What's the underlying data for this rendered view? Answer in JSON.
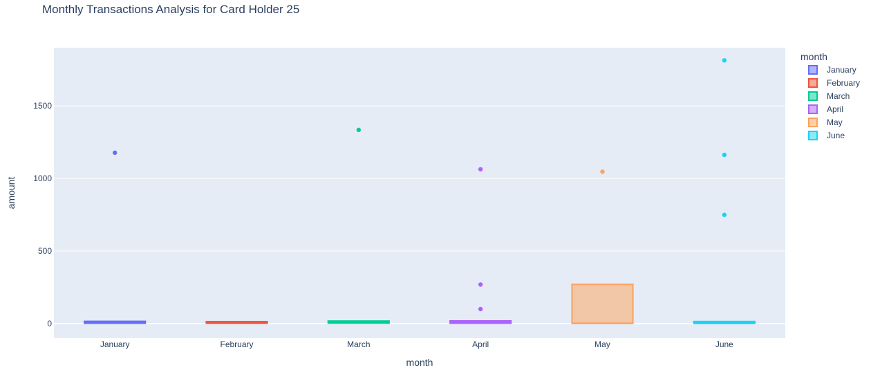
{
  "chart_data": {
    "type": "box",
    "title": "Monthly Transactions Analysis for Card Holder 25",
    "xlabel": "month",
    "ylabel": "amount",
    "ylim": [
      -100,
      1900
    ],
    "yticks": [
      0,
      500,
      1000,
      1500
    ],
    "grid": true,
    "legend": {
      "title": "month",
      "position": "right"
    },
    "categories": [
      "January",
      "February",
      "March",
      "April",
      "May",
      "June"
    ],
    "series": [
      {
        "name": "January",
        "color": "#636efa",
        "q1": 2,
        "median": 10,
        "q3": 16,
        "lowerfence": 2,
        "upperfence": 18,
        "outliers": [
          1177
        ]
      },
      {
        "name": "February",
        "color": "#ef553b",
        "q1": 2,
        "median": 10,
        "q3": 14,
        "lowerfence": 2,
        "upperfence": 17,
        "outliers": []
      },
      {
        "name": "March",
        "color": "#00cc96",
        "q1": 3,
        "median": 12,
        "q3": 18,
        "lowerfence": 2,
        "upperfence": 20,
        "outliers": [
          1334
        ]
      },
      {
        "name": "April",
        "color": "#ab63fa",
        "q1": 2,
        "median": 10,
        "q3": 19,
        "lowerfence": 1,
        "upperfence": 21,
        "outliers": [
          100,
          269,
          1063
        ]
      },
      {
        "name": "May",
        "color": "#ffa15a",
        "q1": 1,
        "median": 3,
        "q3": 270,
        "lowerfence": 1,
        "upperfence": 270,
        "outliers": [
          1046
        ]
      },
      {
        "name": "June",
        "color": "#19d3f3",
        "q1": 1,
        "median": 5,
        "q3": 15,
        "lowerfence": 1,
        "upperfence": 18,
        "outliers": [
          749,
          1162,
          1813
        ]
      }
    ]
  }
}
